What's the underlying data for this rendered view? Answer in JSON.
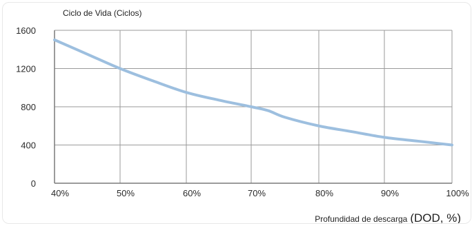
{
  "chart_data": {
    "type": "line",
    "ylabel": "Ciclo de Vida (Ciclos)",
    "xlabel_prefix": "Profundidad de descarga",
    "xlabel_unit": "(DOD, %)",
    "x_tick_labels": [
      "40%",
      "50%",
      "60%",
      "70%",
      "80%",
      "90%",
      "100%"
    ],
    "y_tick_labels": [
      "0",
      "400",
      "800",
      "1200",
      "1600"
    ],
    "ylim": [
      0,
      1600
    ],
    "grid": true,
    "series": [
      {
        "color": "#9dbfdf",
        "points": [
          {
            "x": 40,
            "y": 1500
          },
          {
            "x": 45,
            "y": 1350
          },
          {
            "x": 50,
            "y": 1200
          },
          {
            "x": 55,
            "y": 1070
          },
          {
            "x": 60,
            "y": 950
          },
          {
            "x": 65,
            "y": 870
          },
          {
            "x": 70,
            "y": 800
          },
          {
            "x": 72.5,
            "y": 760
          },
          {
            "x": 75,
            "y": 690
          },
          {
            "x": 80,
            "y": 600
          },
          {
            "x": 85,
            "y": 540
          },
          {
            "x": 90,
            "y": 480
          },
          {
            "x": 95,
            "y": 440
          },
          {
            "x": 100,
            "y": 400
          }
        ]
      }
    ]
  },
  "colors": {
    "grid": "#9a9a9a",
    "axis": "#7a7a7a",
    "line": "#9dbfdf"
  }
}
